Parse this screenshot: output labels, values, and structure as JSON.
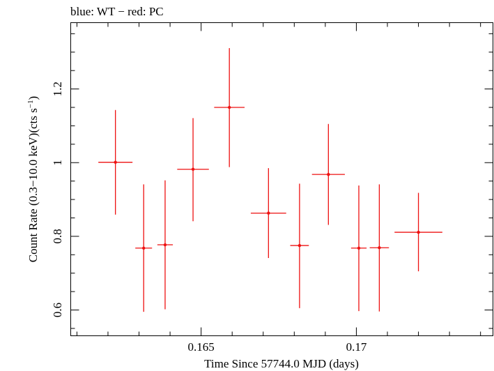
{
  "header": {
    "title": "blue: WT − red: PC"
  },
  "colors": {
    "pc": "#ee1111",
    "axis": "#000000"
  },
  "chart_data": {
    "type": "scatter",
    "title": "blue: WT − red: PC",
    "xlabel": "Time Since 57744.0 MJD (days)",
    "ylabel_main": "Count Rate (0.3−10.0 keV)(cts s",
    "ylabel_sup": "−1",
    "ylabel_close": ")",
    "xlim": [
      0.1608,
      0.1744
    ],
    "ylim": [
      0.53,
      1.38
    ],
    "x_ticks": [
      0.165,
      0.17
    ],
    "x_tick_labels": [
      "0.165",
      "0.17"
    ],
    "y_ticks": [
      0.6,
      0.8,
      1.0,
      1.2
    ],
    "y_tick_labels": [
      "0.6",
      "0.8",
      "1",
      "1.2"
    ],
    "grid": false,
    "series": [
      {
        "name": "PC",
        "color": "#ee1111",
        "points": [
          {
            "x": 0.16224,
            "xerr": 0.00055,
            "y": 1.001,
            "yerr_lo": 0.142,
            "yerr_hi": 0.142
          },
          {
            "x": 0.16315,
            "xerr": 0.00027,
            "y": 0.768,
            "yerr_lo": 0.173,
            "yerr_hi": 0.173
          },
          {
            "x": 0.16384,
            "xerr": 0.00025,
            "y": 0.777,
            "yerr_lo": 0.175,
            "yerr_hi": 0.175
          },
          {
            "x": 0.16474,
            "xerr": 0.00051,
            "y": 0.982,
            "yerr_lo": 0.141,
            "yerr_hi": 0.139
          },
          {
            "x": 0.16591,
            "xerr": 0.00049,
            "y": 1.15,
            "yerr_lo": 0.162,
            "yerr_hi": 0.161
          },
          {
            "x": 0.16717,
            "xerr": 0.00057,
            "y": 0.863,
            "yerr_lo": 0.122,
            "yerr_hi": 0.122
          },
          {
            "x": 0.16817,
            "xerr": 0.0003,
            "y": 0.775,
            "yerr_lo": 0.17,
            "yerr_hi": 0.168
          },
          {
            "x": 0.1691,
            "xerr": 0.00053,
            "y": 0.968,
            "yerr_lo": 0.137,
            "yerr_hi": 0.137
          },
          {
            "x": 0.17008,
            "xerr": 0.00025,
            "y": 0.768,
            "yerr_lo": 0.171,
            "yerr_hi": 0.17
          },
          {
            "x": 0.17074,
            "xerr": 0.00031,
            "y": 0.769,
            "yerr_lo": 0.173,
            "yerr_hi": 0.172
          },
          {
            "x": 0.172,
            "xerr": 0.00077,
            "y": 0.811,
            "yerr_lo": 0.106,
            "yerr_hi": 0.107
          }
        ]
      }
    ]
  }
}
